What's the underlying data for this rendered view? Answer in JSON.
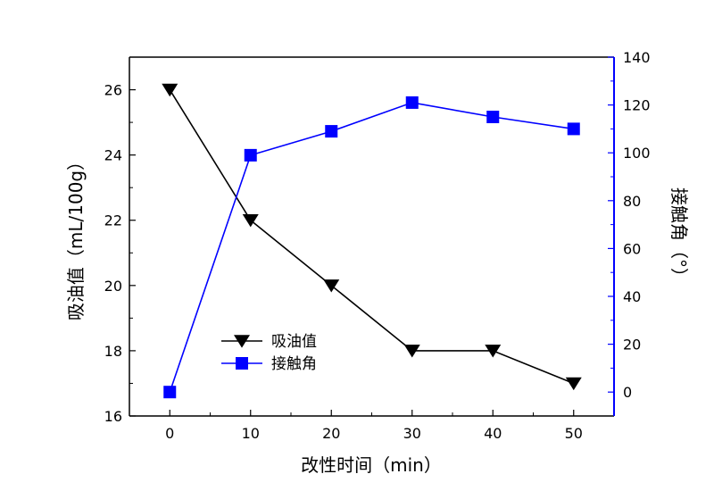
{
  "chart_data": {
    "type": "line",
    "xlabel": "改性时间（min）",
    "ylabel_left": "吸油值（mL/100g）",
    "ylabel_right": "接触角（°）",
    "x_ticks": [
      0,
      10,
      20,
      30,
      40,
      50
    ],
    "y_left_ticks": [
      16,
      18,
      20,
      22,
      24,
      26
    ],
    "y_right_ticks": [
      0,
      20,
      40,
      60,
      80,
      100,
      120,
      140
    ],
    "xlim": [
      -5,
      55
    ],
    "ylim_left": [
      16,
      27
    ],
    "ylim_right": [
      -10,
      140
    ],
    "series": [
      {
        "name": "吸油值",
        "axis": "left",
        "color": "#000000",
        "marker": "triangle-down",
        "x": [
          0,
          10,
          20,
          30,
          40,
          50
        ],
        "y": [
          26,
          22,
          20,
          18,
          18,
          17
        ]
      },
      {
        "name": "接触角",
        "axis": "right",
        "color": "#0000ff",
        "marker": "square",
        "x": [
          0,
          10,
          20,
          30,
          40,
          50
        ],
        "y": [
          0,
          99,
          109,
          121,
          115,
          110
        ]
      }
    ],
    "legend_position": "lower-left"
  }
}
